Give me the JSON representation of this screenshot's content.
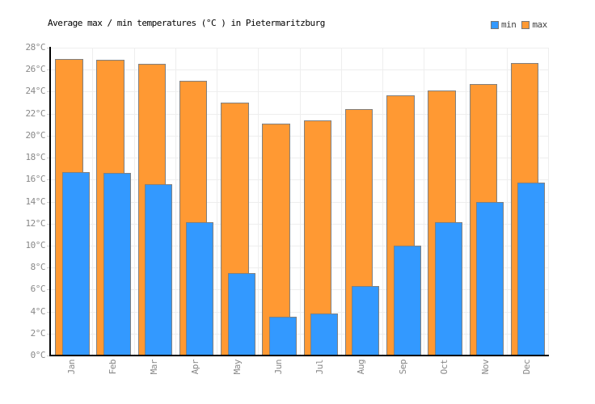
{
  "legend": [
    {
      "label": "min",
      "color": "#3399FF"
    },
    {
      "label": "max",
      "color": "#FF9933"
    }
  ],
  "chart_data": {
    "type": "bar",
    "title": "Average max / min temperatures (°C ) in Pietermaritzburg",
    "categories": [
      "Jan",
      "Feb",
      "Mar",
      "Apr",
      "May",
      "Jun",
      "Jul",
      "Aug",
      "Sep",
      "Oct",
      "Nov",
      "Dec"
    ],
    "series": [
      {
        "name": "max",
        "color": "#FF9933",
        "values": [
          27,
          26.9,
          26.5,
          25,
          23,
          21.1,
          21.4,
          22.4,
          23.7,
          24.1,
          24.7,
          26.6
        ]
      },
      {
        "name": "min",
        "color": "#3399FF",
        "values": [
          16.7,
          16.6,
          15.6,
          12.1,
          7.5,
          3.5,
          3.8,
          6.3,
          10,
          12.1,
          14,
          15.7
        ]
      }
    ],
    "xlabel": "",
    "ylabel": "",
    "unit": "°C",
    "ylim": [
      0,
      28
    ],
    "y_tick_step": 2,
    "y_tick_labels": [
      "0°C",
      "2°C",
      "4°C",
      "6°C",
      "8°C",
      "10°C",
      "12°C",
      "14°C",
      "16°C",
      "18°C",
      "20°C",
      "22°C",
      "24°C",
      "26°C",
      "28°C"
    ],
    "grid": true,
    "legend_position": "top-right",
    "bar_style": "overlapping"
  }
}
